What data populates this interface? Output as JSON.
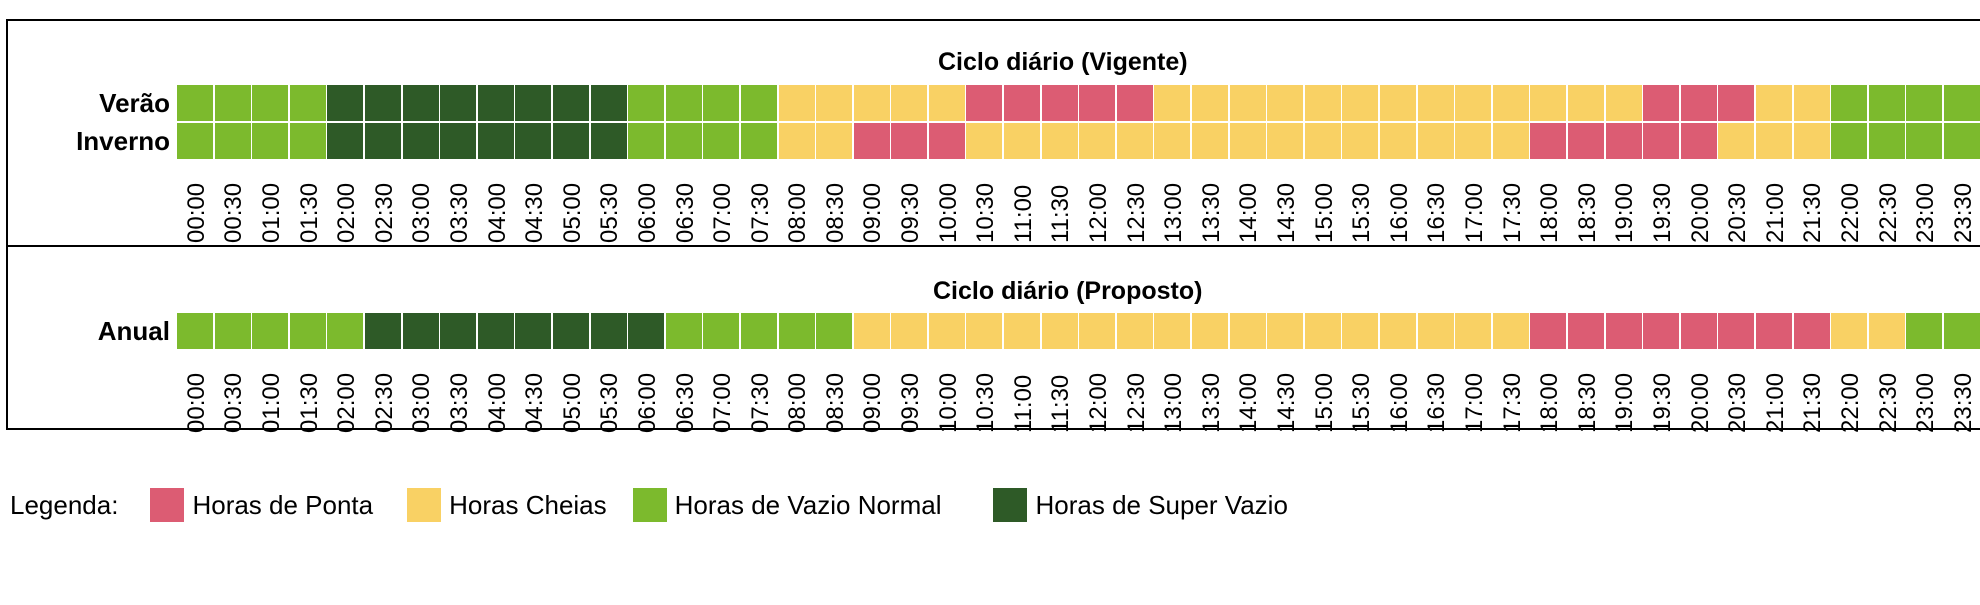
{
  "colors": {
    "ponta": "#dc5c73",
    "cheias": "#f9d164",
    "vazio_normal": "#7cba2d",
    "super_vazio": "#2e5a27"
  },
  "chart_data": [
    {
      "type": "heatmap",
      "title": "Ciclo diário (Vigente)",
      "times": [
        "00:00",
        "00:30",
        "01:00",
        "01:30",
        "02:00",
        "02:30",
        "03:00",
        "03:30",
        "04:00",
        "04:30",
        "05:00",
        "05:30",
        "06:00",
        "06:30",
        "07:00",
        "07:30",
        "08:00",
        "08:30",
        "09:00",
        "09:30",
        "10:00",
        "10:30",
        "11:00",
        "11:30",
        "12:00",
        "12:30",
        "13:00",
        "13:30",
        "14:00",
        "14:30",
        "15:00",
        "15:30",
        "16:00",
        "16:30",
        "17:00",
        "17:30",
        "18:00",
        "18:30",
        "19:00",
        "19:30",
        "20:00",
        "20:30",
        "21:00",
        "21:30",
        "22:00",
        "22:30",
        "23:00",
        "23:30"
      ],
      "rows": [
        {
          "label": "Verão",
          "values": [
            "vazio_normal",
            "vazio_normal",
            "vazio_normal",
            "vazio_normal",
            "super_vazio",
            "super_vazio",
            "super_vazio",
            "super_vazio",
            "super_vazio",
            "super_vazio",
            "super_vazio",
            "super_vazio",
            "vazio_normal",
            "vazio_normal",
            "vazio_normal",
            "vazio_normal",
            "cheias",
            "cheias",
            "cheias",
            "cheias",
            "cheias",
            "ponta",
            "ponta",
            "ponta",
            "ponta",
            "ponta",
            "cheias",
            "cheias",
            "cheias",
            "cheias",
            "cheias",
            "cheias",
            "cheias",
            "cheias",
            "cheias",
            "cheias",
            "cheias",
            "cheias",
            "cheias",
            "ponta",
            "ponta",
            "ponta",
            "cheias",
            "cheias",
            "vazio_normal",
            "vazio_normal",
            "vazio_normal",
            "vazio_normal"
          ]
        },
        {
          "label": "Inverno",
          "values": [
            "vazio_normal",
            "vazio_normal",
            "vazio_normal",
            "vazio_normal",
            "super_vazio",
            "super_vazio",
            "super_vazio",
            "super_vazio",
            "super_vazio",
            "super_vazio",
            "super_vazio",
            "super_vazio",
            "vazio_normal",
            "vazio_normal",
            "vazio_normal",
            "vazio_normal",
            "cheias",
            "cheias",
            "ponta",
            "ponta",
            "ponta",
            "cheias",
            "cheias",
            "cheias",
            "cheias",
            "cheias",
            "cheias",
            "cheias",
            "cheias",
            "cheias",
            "cheias",
            "cheias",
            "cheias",
            "cheias",
            "cheias",
            "cheias",
            "ponta",
            "ponta",
            "ponta",
            "ponta",
            "ponta",
            "cheias",
            "cheias",
            "cheias",
            "vazio_normal",
            "vazio_normal",
            "vazio_normal",
            "vazio_normal"
          ]
        }
      ]
    },
    {
      "type": "heatmap",
      "title": "Ciclo diário (Proposto)",
      "times": [
        "00:00",
        "00:30",
        "01:00",
        "01:30",
        "02:00",
        "02:30",
        "03:00",
        "03:30",
        "04:00",
        "04:30",
        "05:00",
        "05:30",
        "06:00",
        "06:30",
        "07:00",
        "07:30",
        "08:00",
        "08:30",
        "09:00",
        "09:30",
        "10:00",
        "10:30",
        "11:00",
        "11:30",
        "12:00",
        "12:30",
        "13:00",
        "13:30",
        "14:00",
        "14:30",
        "15:00",
        "15:30",
        "16:00",
        "16:30",
        "17:00",
        "17:30",
        "18:00",
        "18:30",
        "19:00",
        "19:30",
        "20:00",
        "20:30",
        "21:00",
        "21:30",
        "22:00",
        "22:30",
        "23:00",
        "23:30"
      ],
      "rows": [
        {
          "label": "Anual",
          "values": [
            "vazio_normal",
            "vazio_normal",
            "vazio_normal",
            "vazio_normal",
            "vazio_normal",
            "super_vazio",
            "super_vazio",
            "super_vazio",
            "super_vazio",
            "super_vazio",
            "super_vazio",
            "super_vazio",
            "super_vazio",
            "vazio_normal",
            "vazio_normal",
            "vazio_normal",
            "vazio_normal",
            "vazio_normal",
            "cheias",
            "cheias",
            "cheias",
            "cheias",
            "cheias",
            "cheias",
            "cheias",
            "cheias",
            "cheias",
            "cheias",
            "cheias",
            "cheias",
            "cheias",
            "cheias",
            "cheias",
            "cheias",
            "cheias",
            "cheias",
            "ponta",
            "ponta",
            "ponta",
            "ponta",
            "ponta",
            "ponta",
            "ponta",
            "ponta",
            "cheias",
            "cheias",
            "vazio_normal",
            "vazio_normal"
          ]
        }
      ]
    }
  ],
  "legend": {
    "title": "Legenda:",
    "items": [
      {
        "key": "ponta",
        "label": "Horas de Ponta"
      },
      {
        "key": "cheias",
        "label": "Horas Cheias"
      },
      {
        "key": "vazio_normal",
        "label": "Horas de Vazio Normal"
      },
      {
        "key": "super_vazio",
        "label": "Horas de Super Vazio"
      }
    ]
  }
}
